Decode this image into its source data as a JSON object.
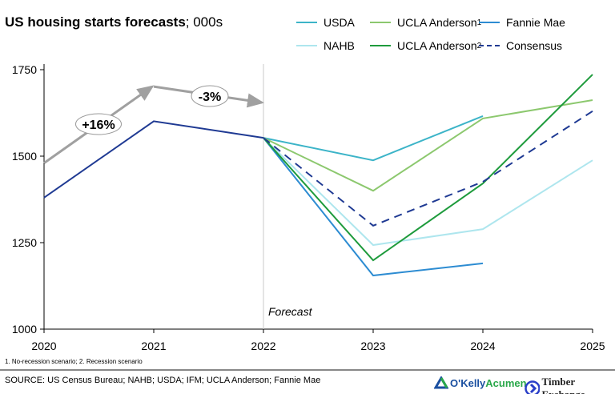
{
  "chart_data": {
    "type": "line",
    "title": "US housing starts forecasts",
    "title_unit": "; 000s",
    "x": [
      2020,
      2021,
      2022,
      2023,
      2024,
      2025
    ],
    "xlim": [
      2020,
      2025
    ],
    "ylim": [
      1000,
      1750
    ],
    "yticks": [
      1000,
      1250,
      1500,
      1750
    ],
    "grid": false,
    "legend_placement": "top-right",
    "forecast_label": "Forecast",
    "historical": {
      "color": "#1f3a93",
      "points": [
        [
          2020,
          1380
        ],
        [
          2021,
          1601
        ],
        [
          2022,
          1553
        ]
      ]
    },
    "growth_arrow": {
      "color": "#a0a0a0",
      "points": [
        [
          2020,
          1480
        ],
        [
          2021,
          1701
        ],
        [
          2022,
          1655
        ]
      ],
      "labels": [
        "+16%",
        "-3%"
      ]
    },
    "series": [
      {
        "name": "USDA",
        "color": "#3cb4c8",
        "dashed": false,
        "points": [
          [
            2022,
            1553
          ],
          [
            2023,
            1488
          ],
          [
            2024,
            1616
          ]
        ]
      },
      {
        "name": "UCLA Anderson",
        "sup": "1",
        "color": "#8cc86e",
        "dashed": false,
        "points": [
          [
            2022,
            1553
          ],
          [
            2023,
            1400
          ],
          [
            2024,
            1609
          ],
          [
            2025,
            1662
          ]
        ]
      },
      {
        "name": "Fannie Mae",
        "color": "#2d8cd2",
        "dashed": false,
        "points": [
          [
            2022,
            1553
          ],
          [
            2023,
            1155
          ],
          [
            2024,
            1190
          ]
        ]
      },
      {
        "name": "NAHB",
        "color": "#aee6ee",
        "dashed": false,
        "points": [
          [
            2022,
            1553
          ],
          [
            2023,
            1243
          ],
          [
            2024,
            1289
          ],
          [
            2025,
            1488
          ]
        ]
      },
      {
        "name": "UCLA Anderson",
        "sup": "2",
        "color": "#1e9b3c",
        "dashed": false,
        "points": [
          [
            2022,
            1553
          ],
          [
            2023,
            1199
          ],
          [
            2024,
            1421
          ],
          [
            2025,
            1736
          ]
        ]
      },
      {
        "name": "Consensus",
        "color": "#1f3a93",
        "dashed": true,
        "points": [
          [
            2022,
            1553
          ],
          [
            2023,
            1299
          ],
          [
            2024,
            1426
          ],
          [
            2025,
            1630
          ]
        ]
      }
    ]
  },
  "footnote": "1. No-recession scenario; 2. Recession scenario",
  "source": "SOURCE: US Census Bureau; NAHB; USDA; IFM; UCLA Anderson; Fannie Mae",
  "logos": {
    "okelly": "O'Kelly Acumen",
    "okelly_a": "O'Kelly",
    "okelly_b": "Acumen",
    "timber": "Timber Exchange"
  }
}
